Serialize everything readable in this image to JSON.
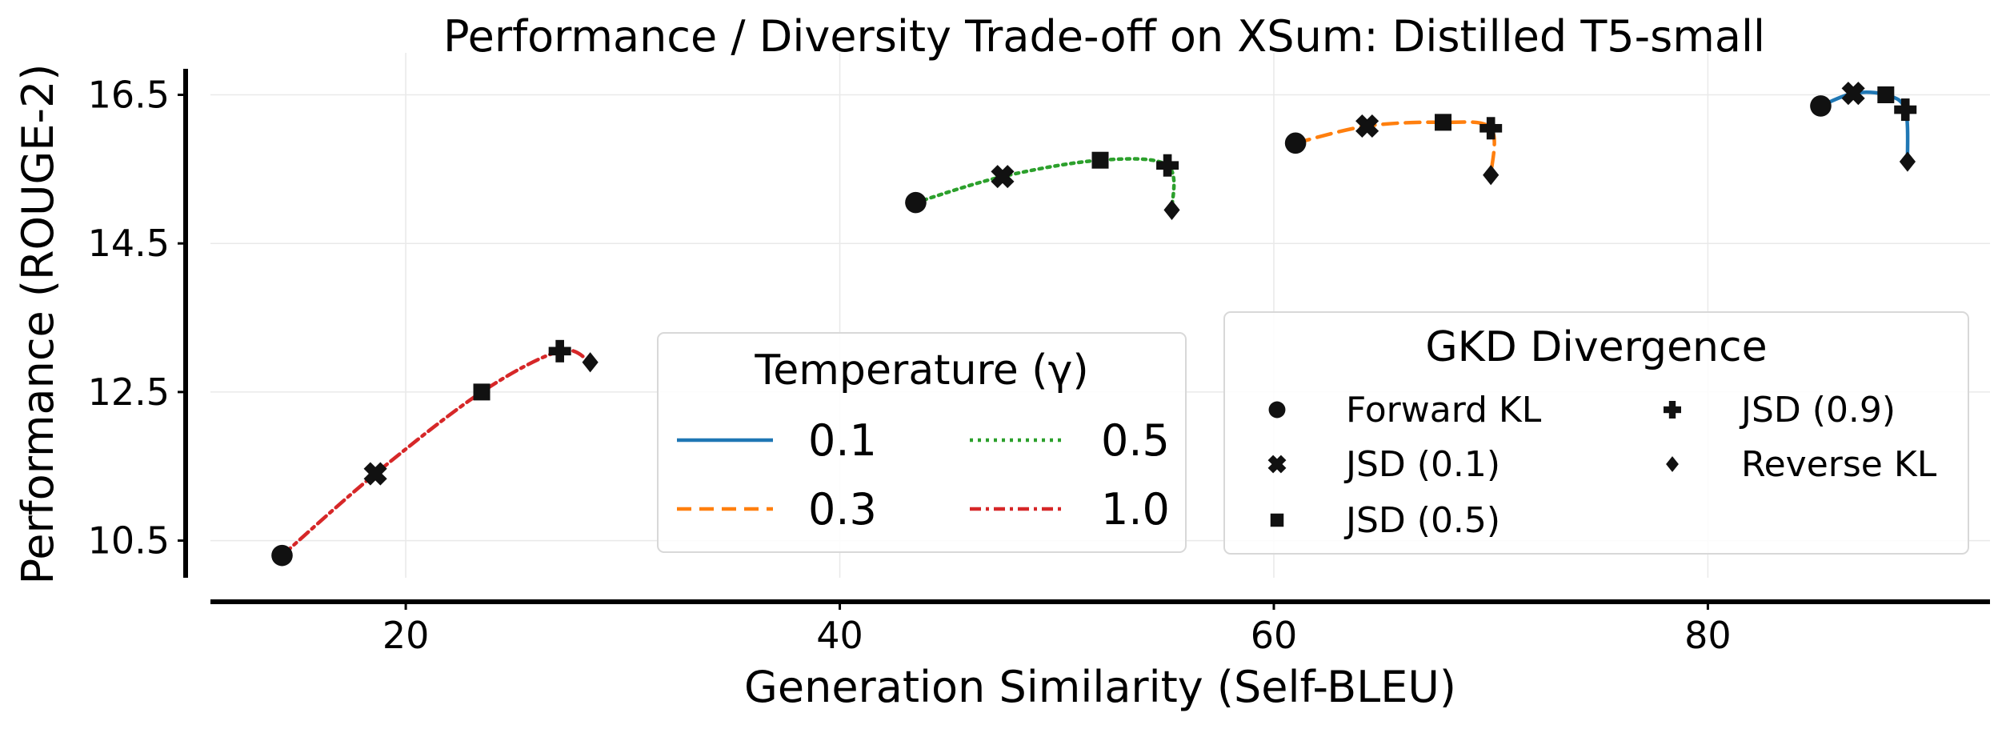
{
  "chart_data": {
    "type": "line",
    "title": "Performance / Diversity Trade-off on XSum: Distilled T5-small",
    "xlabel": "Generation Similarity (Self-BLEU)",
    "ylabel": "Performance (ROUGE-2)",
    "xlim": [
      11,
      93
    ],
    "ylim": [
      10.0,
      16.85
    ],
    "xticks": [
      20,
      40,
      60,
      80
    ],
    "yticks": [
      10.5,
      12.5,
      14.5,
      16.5
    ],
    "xtick_labels": [
      "20",
      "40",
      "60",
      "80"
    ],
    "ytick_labels": [
      "10.5",
      "12.5",
      "14.5",
      "16.5"
    ],
    "grid": true,
    "temperature_legend": {
      "title": "Temperature (γ)",
      "placement": "lower-center",
      "entries": [
        "0.1",
        "0.3",
        "0.5",
        "1.0"
      ]
    },
    "divergence_legend": {
      "title": "GKD Divergence",
      "placement": "lower-right",
      "entries": [
        "Forward KL",
        "JSD (0.1)",
        "JSD (0.5)",
        "JSD (0.9)",
        "Reverse KL"
      ]
    },
    "markers": [
      "circle",
      "x",
      "square",
      "plus",
      "diamond"
    ],
    "series": [
      {
        "name": "0.1",
        "color": "#1f77b4",
        "dash": "solid",
        "x": [
          85.2,
          86.7,
          88.2,
          89.1,
          89.2
        ],
        "y": [
          16.35,
          16.52,
          16.5,
          16.3,
          15.6
        ]
      },
      {
        "name": "0.3",
        "color": "#ff7f0e",
        "dash": "dashed",
        "x": [
          61.0,
          64.3,
          67.8,
          70.0,
          70.0
        ],
        "y": [
          15.85,
          16.08,
          16.13,
          16.05,
          15.42
        ]
      },
      {
        "name": "0.5",
        "color": "#2ca02c",
        "dash": "dotted",
        "x": [
          43.5,
          47.5,
          52.0,
          55.1,
          55.3
        ],
        "y": [
          15.05,
          15.4,
          15.62,
          15.55,
          14.95
        ]
      },
      {
        "name": "1.0",
        "color": "#d62728",
        "dash": "dashdot",
        "x": [
          14.3,
          18.6,
          23.5,
          27.1,
          28.5
        ],
        "y": [
          10.3,
          11.4,
          12.5,
          13.05,
          12.9
        ]
      }
    ]
  }
}
